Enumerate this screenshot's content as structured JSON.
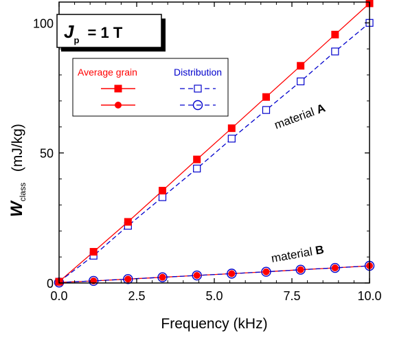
{
  "chart_data": {
    "type": "line",
    "xlabel": "Frequency (kHz)",
    "ylabel": {
      "symbol": "W",
      "subscript": "class",
      "units": "(mJ/kg)"
    },
    "xlim": [
      0,
      10
    ],
    "ylim": [
      0,
      108
    ],
    "x_ticks": [
      "0.0",
      "2.5",
      "5.0",
      "7.5",
      "10.0"
    ],
    "y_ticks": [
      "0",
      "50",
      "100"
    ],
    "box_label": {
      "symbol": "J",
      "subscript": "p",
      "rest": " = 1 T"
    },
    "legend": {
      "col1": "Average grain",
      "col2": "Distribution",
      "col1_color": "#ff0000",
      "col2_color": "#0000cc"
    },
    "annotations": [
      {
        "prefix": "material ",
        "bold": "A"
      },
      {
        "prefix": "material ",
        "bold": "B"
      }
    ],
    "series": [
      {
        "material": "A",
        "method": "Average grain",
        "marker": "filled-square",
        "color": "#ff0000",
        "dash": false,
        "x": [
          0.0,
          1.11,
          2.22,
          3.33,
          4.44,
          5.56,
          6.67,
          7.78,
          8.89,
          10.0
        ],
        "y": [
          0.5,
          12,
          23.5,
          35.5,
          47.5,
          59.5,
          71.5,
          83.5,
          95.5,
          107.5
        ]
      },
      {
        "material": "A",
        "method": "Distribution",
        "marker": "open-square",
        "color": "#0000cc",
        "dash": true,
        "x": [
          0.0,
          1.11,
          2.22,
          3.33,
          4.44,
          5.56,
          6.67,
          7.78,
          8.89,
          10.0
        ],
        "y": [
          0.5,
          10.5,
          22,
          33,
          44,
          55.5,
          66.5,
          77.5,
          89,
          100
        ]
      },
      {
        "material": "B",
        "method": "Average grain",
        "marker": "filled-circle",
        "color": "#ff0000",
        "dash": false,
        "x": [
          0.0,
          1.11,
          2.22,
          3.33,
          4.44,
          5.56,
          6.67,
          7.78,
          8.89,
          10.0
        ],
        "y": [
          0.2,
          0.8,
          1.5,
          2.2,
          2.9,
          3.6,
          4.3,
          5.1,
          5.8,
          6.6
        ]
      },
      {
        "material": "B",
        "method": "Distribution",
        "marker": "open-circle",
        "color": "#0000cc",
        "dash": true,
        "x": [
          0.0,
          1.11,
          2.22,
          3.33,
          4.44,
          5.56,
          6.67,
          7.78,
          8.89,
          10.0
        ],
        "y": [
          0.2,
          0.8,
          1.5,
          2.2,
          2.9,
          3.6,
          4.3,
          5.1,
          5.8,
          6.6
        ]
      }
    ]
  }
}
